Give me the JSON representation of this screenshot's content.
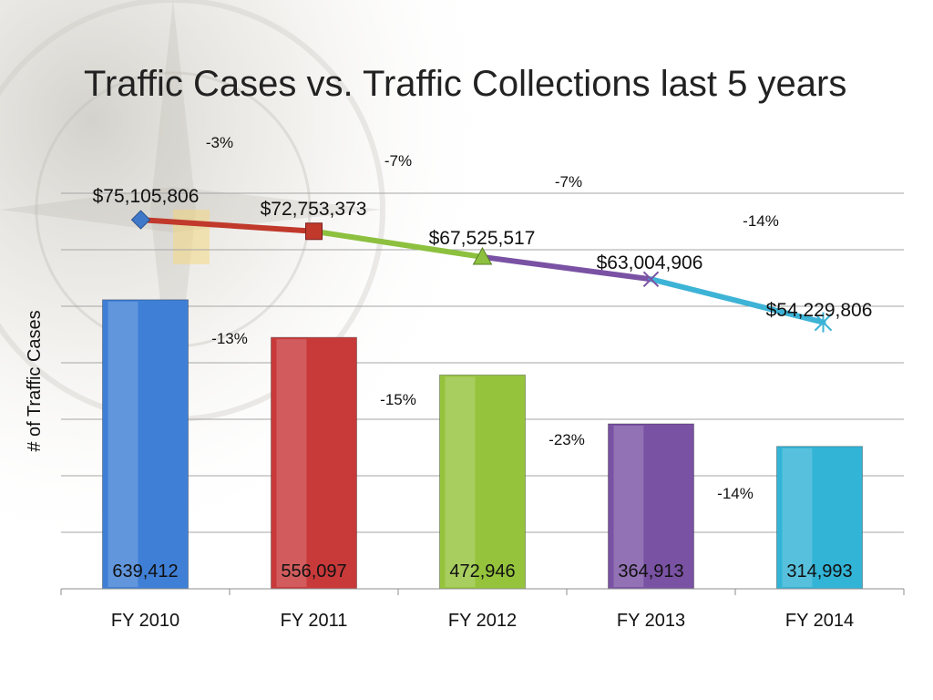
{
  "slide": {
    "title": "Traffic Cases vs. Traffic Collections last 5 years"
  },
  "chart_data": {
    "type": "bar",
    "title": "Traffic Cases vs. Traffic Collections last 5 years",
    "xlabel": "",
    "ylabel": "# of Traffic Cases",
    "categories": [
      "FY 2010",
      "FY 2011",
      "FY 2012",
      "FY 2013",
      "FY 2014"
    ],
    "grid": true,
    "legend": "none",
    "bars": {
      "values": [
        639412,
        556097,
        472946,
        364913,
        314993
      ],
      "value_labels": [
        "639,412",
        "556,097",
        "472,946",
        "364,913",
        "314,993"
      ],
      "colors": [
        "#3f7fd6",
        "#c8393a",
        "#95c43c",
        "#7a52a4",
        "#32b4d6"
      ],
      "ylim": [
        0,
        1000000
      ],
      "change_labels": [
        "-13%",
        "-15%",
        "-23%",
        "-14%"
      ]
    },
    "line": {
      "name": "Traffic Collections",
      "values": [
        75105806,
        72753373,
        67525517,
        63004906,
        54229806
      ],
      "value_labels": [
        "$75,105,806",
        "$72,753,373",
        "$67,525,517",
        "$63,004,906",
        "$54,229,806"
      ],
      "segment_colors": [
        "#c0392b",
        "#8dc03f",
        "#7a52a4",
        "#3db3d6"
      ],
      "markers": [
        "diamond",
        "square",
        "triangle",
        "x",
        "star"
      ],
      "marker_colors": [
        "#3f78c8",
        "#c0392b",
        "#8dc03f",
        "#7a52a4",
        "#3db3d6"
      ],
      "change_labels": [
        "-3%",
        "-7%",
        "-7%",
        "-14%"
      ]
    }
  }
}
